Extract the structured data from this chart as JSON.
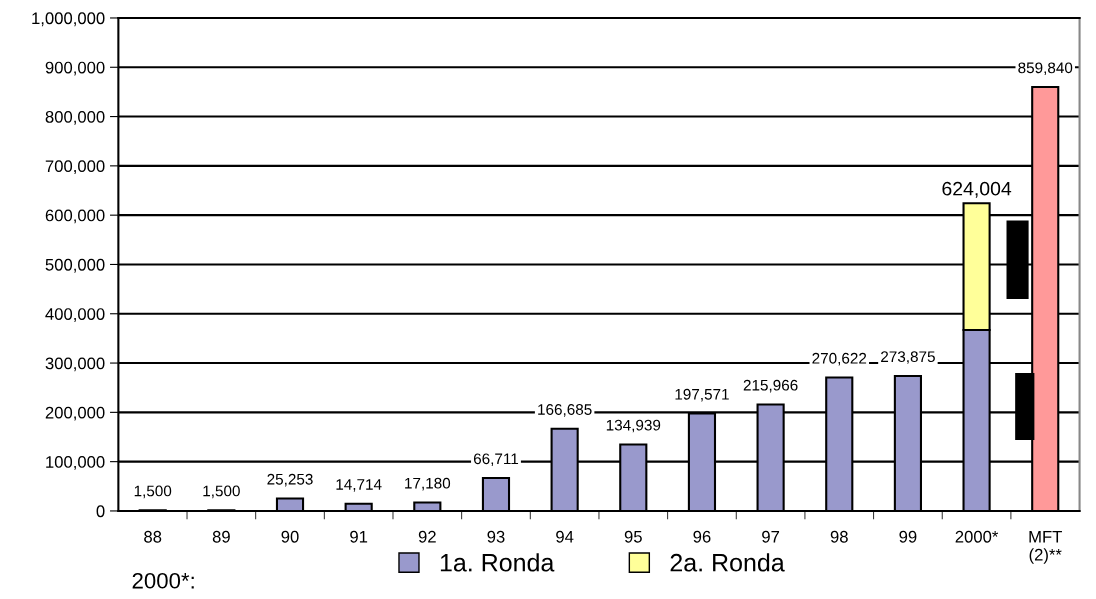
{
  "chart_data": {
    "type": "bar",
    "stacked": true,
    "categories": [
      "88",
      "89",
      "90",
      "91",
      "92",
      "93",
      "94",
      "95",
      "96",
      "97",
      "98",
      "99",
      "2000*",
      "MFT\n(2)**"
    ],
    "series": [
      {
        "name": "1a. Ronda",
        "color": "#9999cc",
        "values": [
          1500,
          1500,
          25253,
          14714,
          17180,
          66711,
          166685,
          134939,
          197571,
          215966,
          270622,
          273875,
          367000,
          null
        ],
        "value_labels": [
          "1,500",
          "1,500",
          "25,253",
          "14,714",
          "17,180",
          "66,711",
          "166,685",
          "134,939",
          "197,571",
          "215,966",
          "270,622",
          "273,875",
          null,
          null
        ]
      },
      {
        "name": "2a. Ronda",
        "color": "#ffff99",
        "values": [
          null,
          null,
          null,
          null,
          null,
          null,
          null,
          null,
          null,
          null,
          null,
          null,
          257004,
          null
        ]
      },
      {
        "color": "#ff9999",
        "values": [
          null,
          null,
          null,
          null,
          null,
          null,
          null,
          null,
          null,
          null,
          null,
          null,
          null,
          859840
        ],
        "value_labels": [
          null,
          null,
          null,
          null,
          null,
          null,
          null,
          null,
          null,
          null,
          null,
          null,
          null,
          "859,840"
        ]
      }
    ],
    "totals": [
      null,
      null,
      null,
      null,
      null,
      null,
      null,
      null,
      null,
      null,
      null,
      null,
      "624,004",
      null
    ],
    "ylim": [
      0,
      1000000
    ],
    "yticks": [
      {
        "value": 0,
        "label": "0"
      },
      {
        "value": 100000,
        "label": "100,000"
      },
      {
        "value": 200000,
        "label": "200,000"
      },
      {
        "value": 300000,
        "label": "300,000"
      },
      {
        "value": 400000,
        "label": "400,000"
      },
      {
        "value": 500000,
        "label": "500,000"
      },
      {
        "value": 600000,
        "label": "600,000"
      },
      {
        "value": 700000,
        "label": "700,000"
      },
      {
        "value": 800000,
        "label": "800,000"
      },
      {
        "value": 900000,
        "label": "900,000"
      },
      {
        "value": 1000000,
        "label": "1,000,000"
      }
    ],
    "grid": "y",
    "legend": "bottom",
    "annotations": [
      "2000*:"
    ]
  }
}
